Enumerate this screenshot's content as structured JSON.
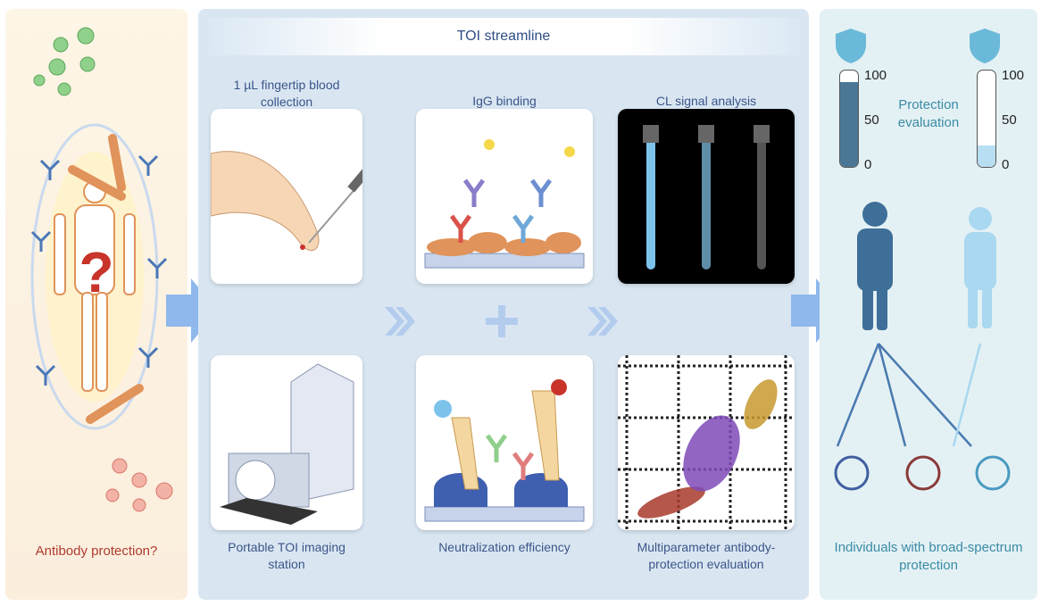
{
  "left_panel": {
    "caption": "Antibody protection?",
    "question_mark": "?"
  },
  "middle_panel": {
    "title": "TOI streamline",
    "steps": [
      {
        "label": "1 µL fingertip blood collection"
      },
      {
        "label": "IgG binding"
      },
      {
        "label": "CL signal analysis"
      },
      {
        "label": "Portable TOI imaging station"
      },
      {
        "label": "Neutralization efficiency"
      },
      {
        "label": "Multiparameter antibody-protection evaluation"
      }
    ]
  },
  "right_panel": {
    "protection_label": "Protection evaluation",
    "gauges": [
      {
        "ticks": [
          "100",
          "50",
          "0"
        ],
        "level_percent": 88,
        "color": "#4a7795"
      },
      {
        "ticks": [
          "100",
          "50",
          "0"
        ],
        "level_percent": 22,
        "color": "#b8def2"
      }
    ],
    "caption": "Individuals with broad-spectrum protection"
  },
  "colors": {
    "antibody_orange": "#e0935a",
    "dark_blue": "#3e6f98",
    "light_blue": "#a9d8f0",
    "virus_green": "#6cbf6a",
    "virus_red": "#d9776a"
  }
}
